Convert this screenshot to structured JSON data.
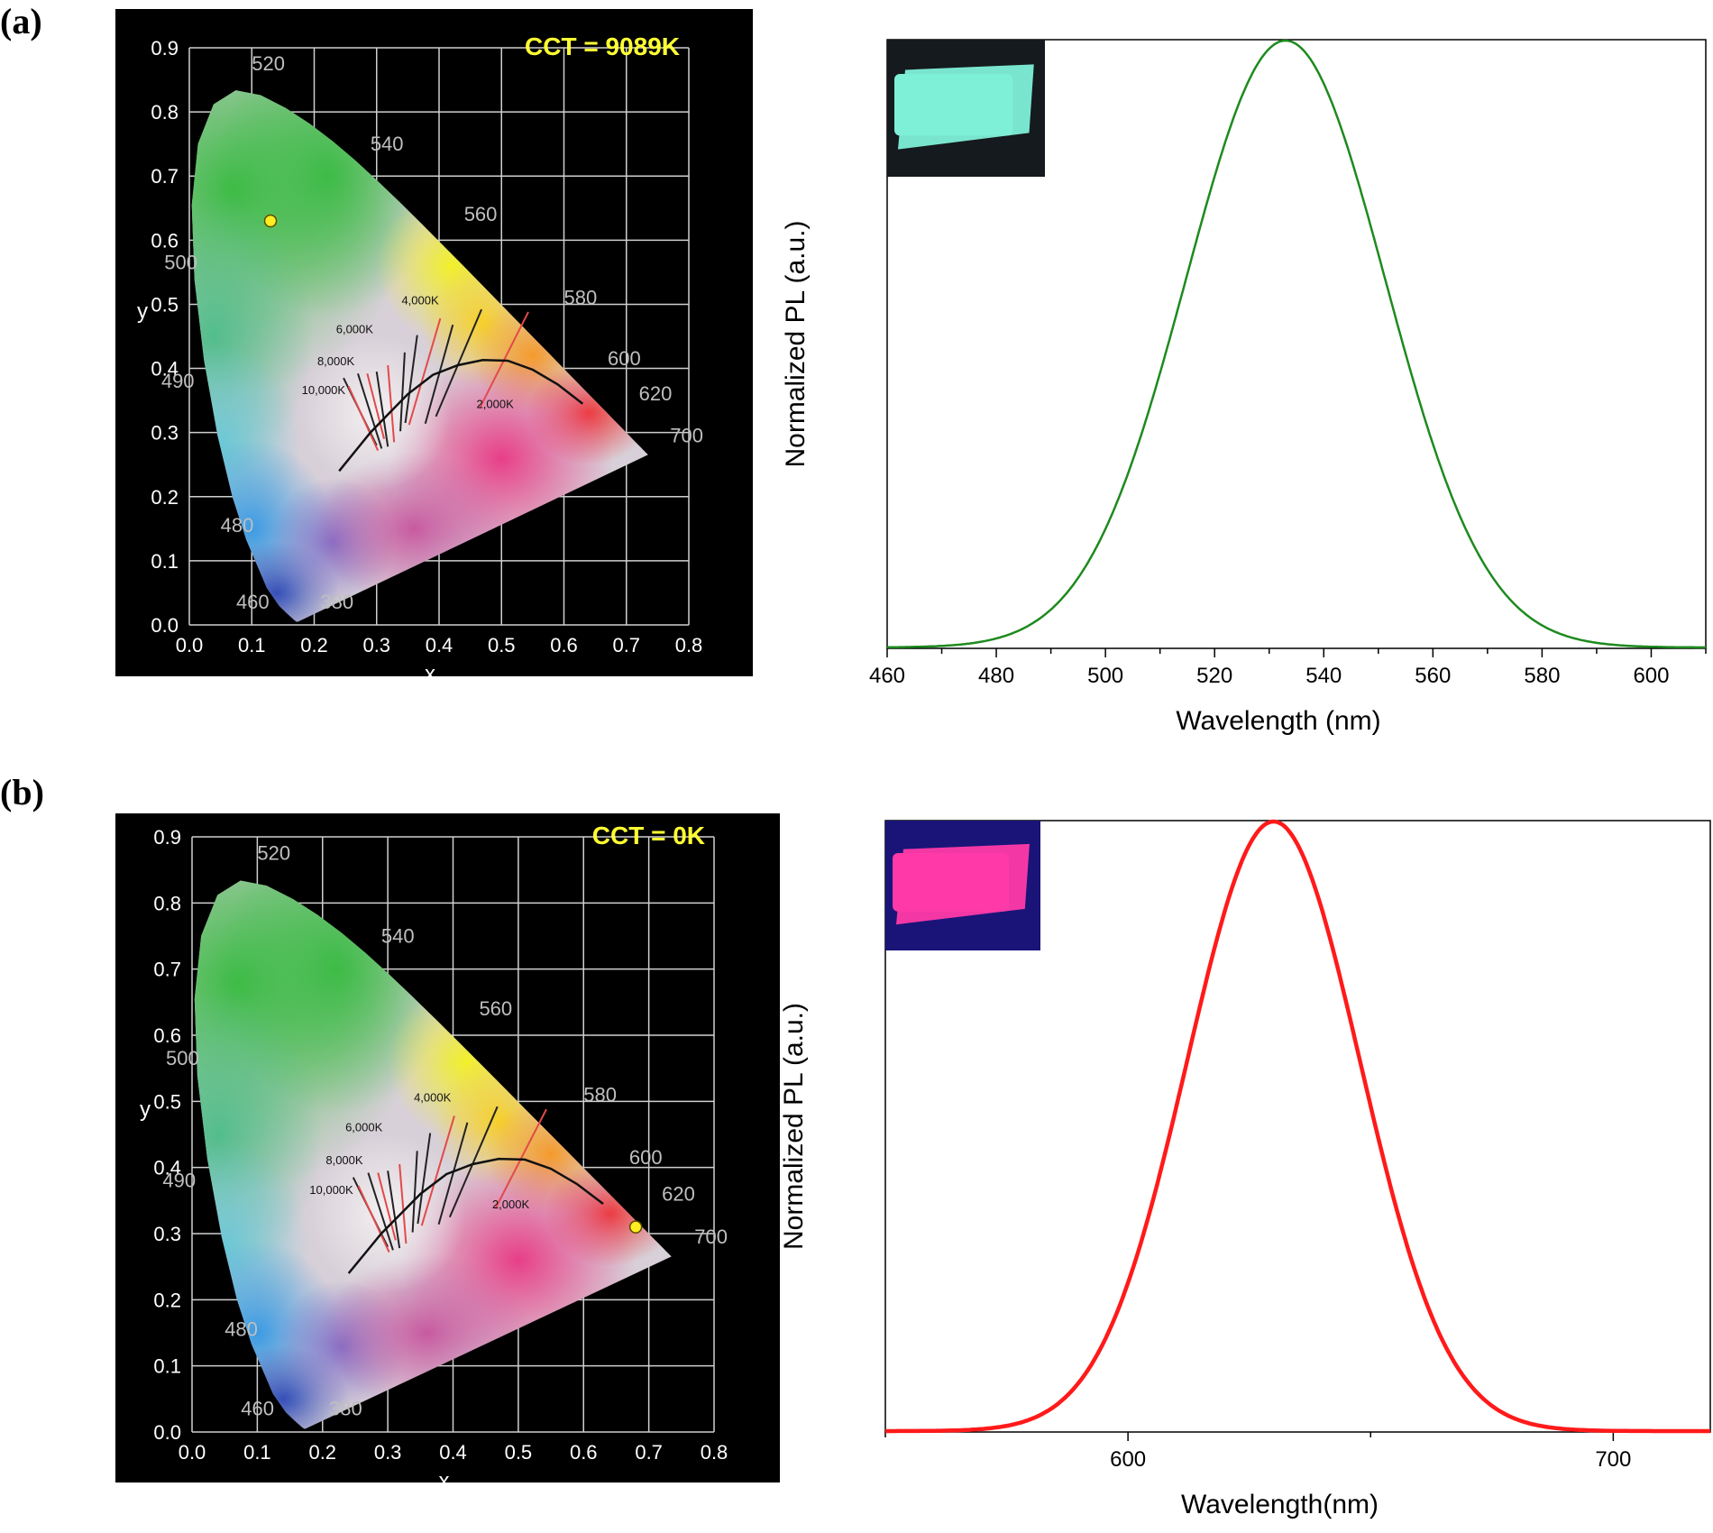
{
  "panel_labels": [
    "(a)",
    "(b)"
  ],
  "colors": {
    "green_curve": "#1e8a1e",
    "red_curve": "#ff1a1a",
    "cct_text": "#ffff33",
    "point": "#ffee22"
  },
  "chart_data": [
    {
      "type": "scatter",
      "panel": "(a)",
      "cct_label": "CCT = 9089K",
      "xlabel": "x",
      "ylabel": "y",
      "xlim": [
        0.0,
        0.8
      ],
      "ylim": [
        0.0,
        0.9
      ],
      "x_ticks": [
        "0.0",
        "0.1",
        "0.2",
        "0.3",
        "0.4",
        "0.5",
        "0.6",
        "0.7",
        "0.8"
      ],
      "y_ticks": [
        "0.0",
        "0.1",
        "0.2",
        "0.3",
        "0.4",
        "0.5",
        "0.6",
        "0.7",
        "0.8",
        "0.9"
      ],
      "wavelength_labels": [
        "520",
        "540",
        "560",
        "580",
        "600",
        "620",
        "700",
        "500",
        "490",
        "480",
        "460",
        "380"
      ],
      "cct_labels": [
        "10,000K",
        "8,000K",
        "6,000K",
        "4,000K",
        "2,000K"
      ],
      "point": {
        "x": 0.13,
        "y": 0.63
      }
    },
    {
      "type": "line",
      "panel": "(a)",
      "xlabel": "Wavelength (nm)",
      "ylabel": "Normalized PL (a.u.)",
      "xlim": [
        460,
        610
      ],
      "x_ticks": [
        "460",
        "480",
        "500",
        "520",
        "540",
        "560",
        "580",
        "600"
      ],
      "peak": 533,
      "fwhm": 43,
      "series": [
        {
          "values": "gaussian"
        }
      ],
      "inset": "photo-green-film"
    },
    {
      "type": "scatter",
      "panel": "(b)",
      "cct_label": "CCT = 0K",
      "xlabel": "x",
      "ylabel": "y",
      "xlim": [
        0.0,
        0.8
      ],
      "ylim": [
        0.0,
        0.9
      ],
      "x_ticks": [
        "0.0",
        "0.1",
        "0.2",
        "0.3",
        "0.4",
        "0.5",
        "0.6",
        "0.7",
        "0.8"
      ],
      "y_ticks": [
        "0.0",
        "0.1",
        "0.2",
        "0.3",
        "0.4",
        "0.5",
        "0.6",
        "0.7",
        "0.8",
        "0.9"
      ],
      "wavelength_labels": [
        "520",
        "540",
        "560",
        "580",
        "600",
        "620",
        "700",
        "500",
        "490",
        "480",
        "460",
        "380"
      ],
      "cct_labels": [
        "10,000K",
        "8,000K",
        "6,000K",
        "4,000K",
        "2,000K"
      ],
      "point": {
        "x": 0.68,
        "y": 0.31
      }
    },
    {
      "type": "line",
      "panel": "(b)",
      "xlabel": "Wavelength(nm)",
      "ylabel": "Normalized PL (a.u.)",
      "xlim": [
        550,
        720
      ],
      "x_ticks": [
        "600",
        "700"
      ],
      "peak": 630,
      "fwhm": 42,
      "inset": "photo-pink-film"
    }
  ]
}
